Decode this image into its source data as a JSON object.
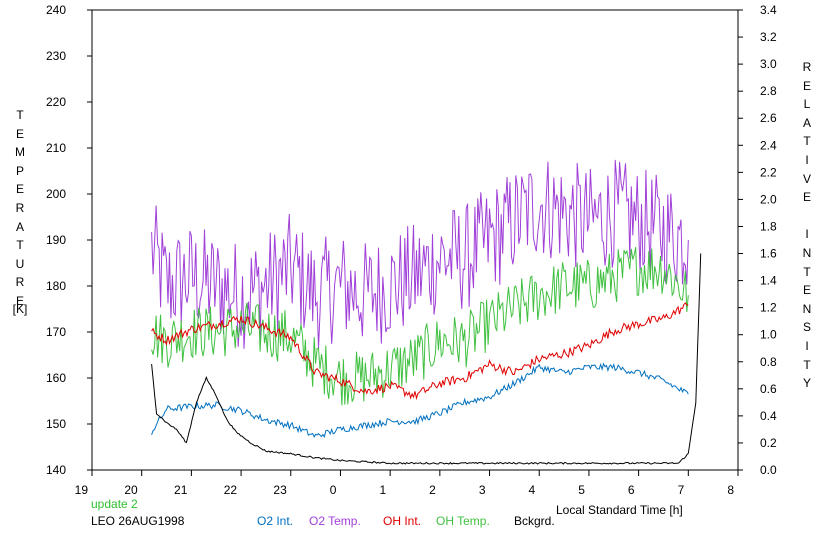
{
  "chart_data": {
    "type": "line",
    "xlabel": "Local Standard Time [h]",
    "left_axis_title": "T E M P E R A T U R E",
    "left_axis_unit": "[K]",
    "right_axis_title": "R E L A T I V E   I N T E N S I T Y",
    "x_ticks": [
      "19",
      "20",
      "21",
      "22",
      "23",
      "0",
      "1",
      "2",
      "3",
      "4",
      "5",
      "6",
      "7",
      "8"
    ],
    "x_range": [
      19,
      8
    ],
    "y_left_range": [
      140,
      240
    ],
    "y_left_ticks": [
      "140",
      "150",
      "160",
      "170",
      "180",
      "190",
      "200",
      "210",
      "220",
      "230",
      "240"
    ],
    "y_right_range": [
      0.0,
      3.4
    ],
    "y_right_ticks": [
      "0.0",
      "0.2",
      "0.4",
      "0.6",
      "0.8",
      "1.0",
      "1.2",
      "1.4",
      "1.6",
      "1.8",
      "2.0",
      "2.2",
      "2.4",
      "2.6",
      "2.8",
      "3.0",
      "3.2",
      "3.4"
    ],
    "grid": false,
    "series": [
      {
        "name": "O2 Int.",
        "axis": "right",
        "color": "#0070c0",
        "x": [
          20.2,
          20.5,
          21.0,
          21.5,
          22.0,
          22.5,
          23.0,
          23.5,
          0.0,
          0.5,
          1.0,
          1.5,
          2.0,
          2.5,
          3.0,
          3.5,
          4.0,
          4.5,
          5.0,
          5.5,
          6.0,
          6.5,
          7.0
        ],
        "values": [
          0.28,
          0.45,
          0.47,
          0.48,
          0.44,
          0.37,
          0.33,
          0.25,
          0.3,
          0.33,
          0.36,
          0.36,
          0.42,
          0.5,
          0.54,
          0.64,
          0.76,
          0.72,
          0.76,
          0.76,
          0.72,
          0.66,
          0.56
        ]
      },
      {
        "name": "O2 Temp.",
        "axis": "left",
        "color": "#a040d8",
        "x": [
          20.2,
          20.5,
          21.0,
          21.5,
          22.0,
          22.5,
          23.0,
          23.5,
          0.0,
          0.5,
          1.0,
          1.5,
          2.0,
          2.5,
          3.0,
          3.5,
          4.0,
          4.5,
          5.0,
          5.5,
          6.0,
          6.5,
          7.0
        ],
        "values": [
          188,
          180,
          182,
          180,
          178,
          180,
          184,
          178,
          180,
          178,
          180,
          182,
          186,
          186,
          190,
          194,
          198,
          196,
          194,
          196,
          194,
          192,
          190
        ]
      },
      {
        "name": "OH Int.",
        "axis": "right",
        "color": "#e00000",
        "x": [
          20.2,
          20.5,
          21.0,
          21.5,
          22.0,
          22.5,
          23.0,
          23.5,
          0.0,
          0.5,
          1.0,
          1.5,
          2.0,
          2.5,
          3.0,
          3.5,
          4.0,
          4.5,
          5.0,
          5.5,
          6.0,
          6.5,
          7.0
        ],
        "values": [
          1.02,
          0.96,
          1.04,
          1.08,
          1.12,
          1.05,
          0.98,
          0.72,
          0.66,
          0.58,
          0.62,
          0.55,
          0.64,
          0.68,
          0.78,
          0.72,
          0.82,
          0.86,
          0.92,
          1.03,
          1.08,
          1.12,
          1.22
        ]
      },
      {
        "name": "OH Temp.",
        "axis": "left",
        "color": "#40c040",
        "x": [
          20.2,
          20.5,
          21.0,
          21.5,
          22.0,
          22.5,
          23.0,
          23.5,
          0.0,
          0.5,
          1.0,
          1.5,
          2.0,
          2.5,
          3.0,
          3.5,
          4.0,
          4.5,
          5.0,
          5.5,
          6.0,
          6.5,
          7.0
        ],
        "values": [
          170,
          168,
          170,
          170,
          171,
          170,
          169,
          163,
          160,
          160,
          162,
          164,
          168,
          168,
          172,
          175,
          178,
          180,
          180,
          182,
          184,
          184,
          178
        ]
      },
      {
        "name": "Bckgrd.",
        "axis": "right",
        "color": "#000000",
        "x": [
          20.2,
          20.3,
          20.5,
          20.7,
          20.9,
          21.1,
          21.3,
          21.5,
          21.7,
          21.9,
          22.2,
          22.5,
          23.0,
          23.5,
          0.0,
          1.0,
          2.0,
          3.0,
          4.0,
          5.0,
          6.0,
          6.8,
          7.0,
          7.15,
          7.25
        ],
        "values": [
          0.78,
          0.42,
          0.35,
          0.3,
          0.2,
          0.5,
          0.68,
          0.55,
          0.38,
          0.28,
          0.2,
          0.14,
          0.12,
          0.09,
          0.07,
          0.05,
          0.05,
          0.05,
          0.05,
          0.05,
          0.05,
          0.05,
          0.12,
          0.5,
          1.6
        ]
      }
    ]
  },
  "footer": {
    "update": "update 2",
    "station": "LEO 26AUG1998",
    "legend": [
      "O2 Int.",
      "O2 Temp.",
      "OH Int.",
      "OH Temp.",
      "Bckgrd."
    ]
  },
  "colors": {
    "o2_int": "#0070c0",
    "o2_temp": "#a040d8",
    "oh_int": "#e00000",
    "oh_temp": "#40c040",
    "bckgrd": "#000000",
    "update": "#30c030"
  }
}
